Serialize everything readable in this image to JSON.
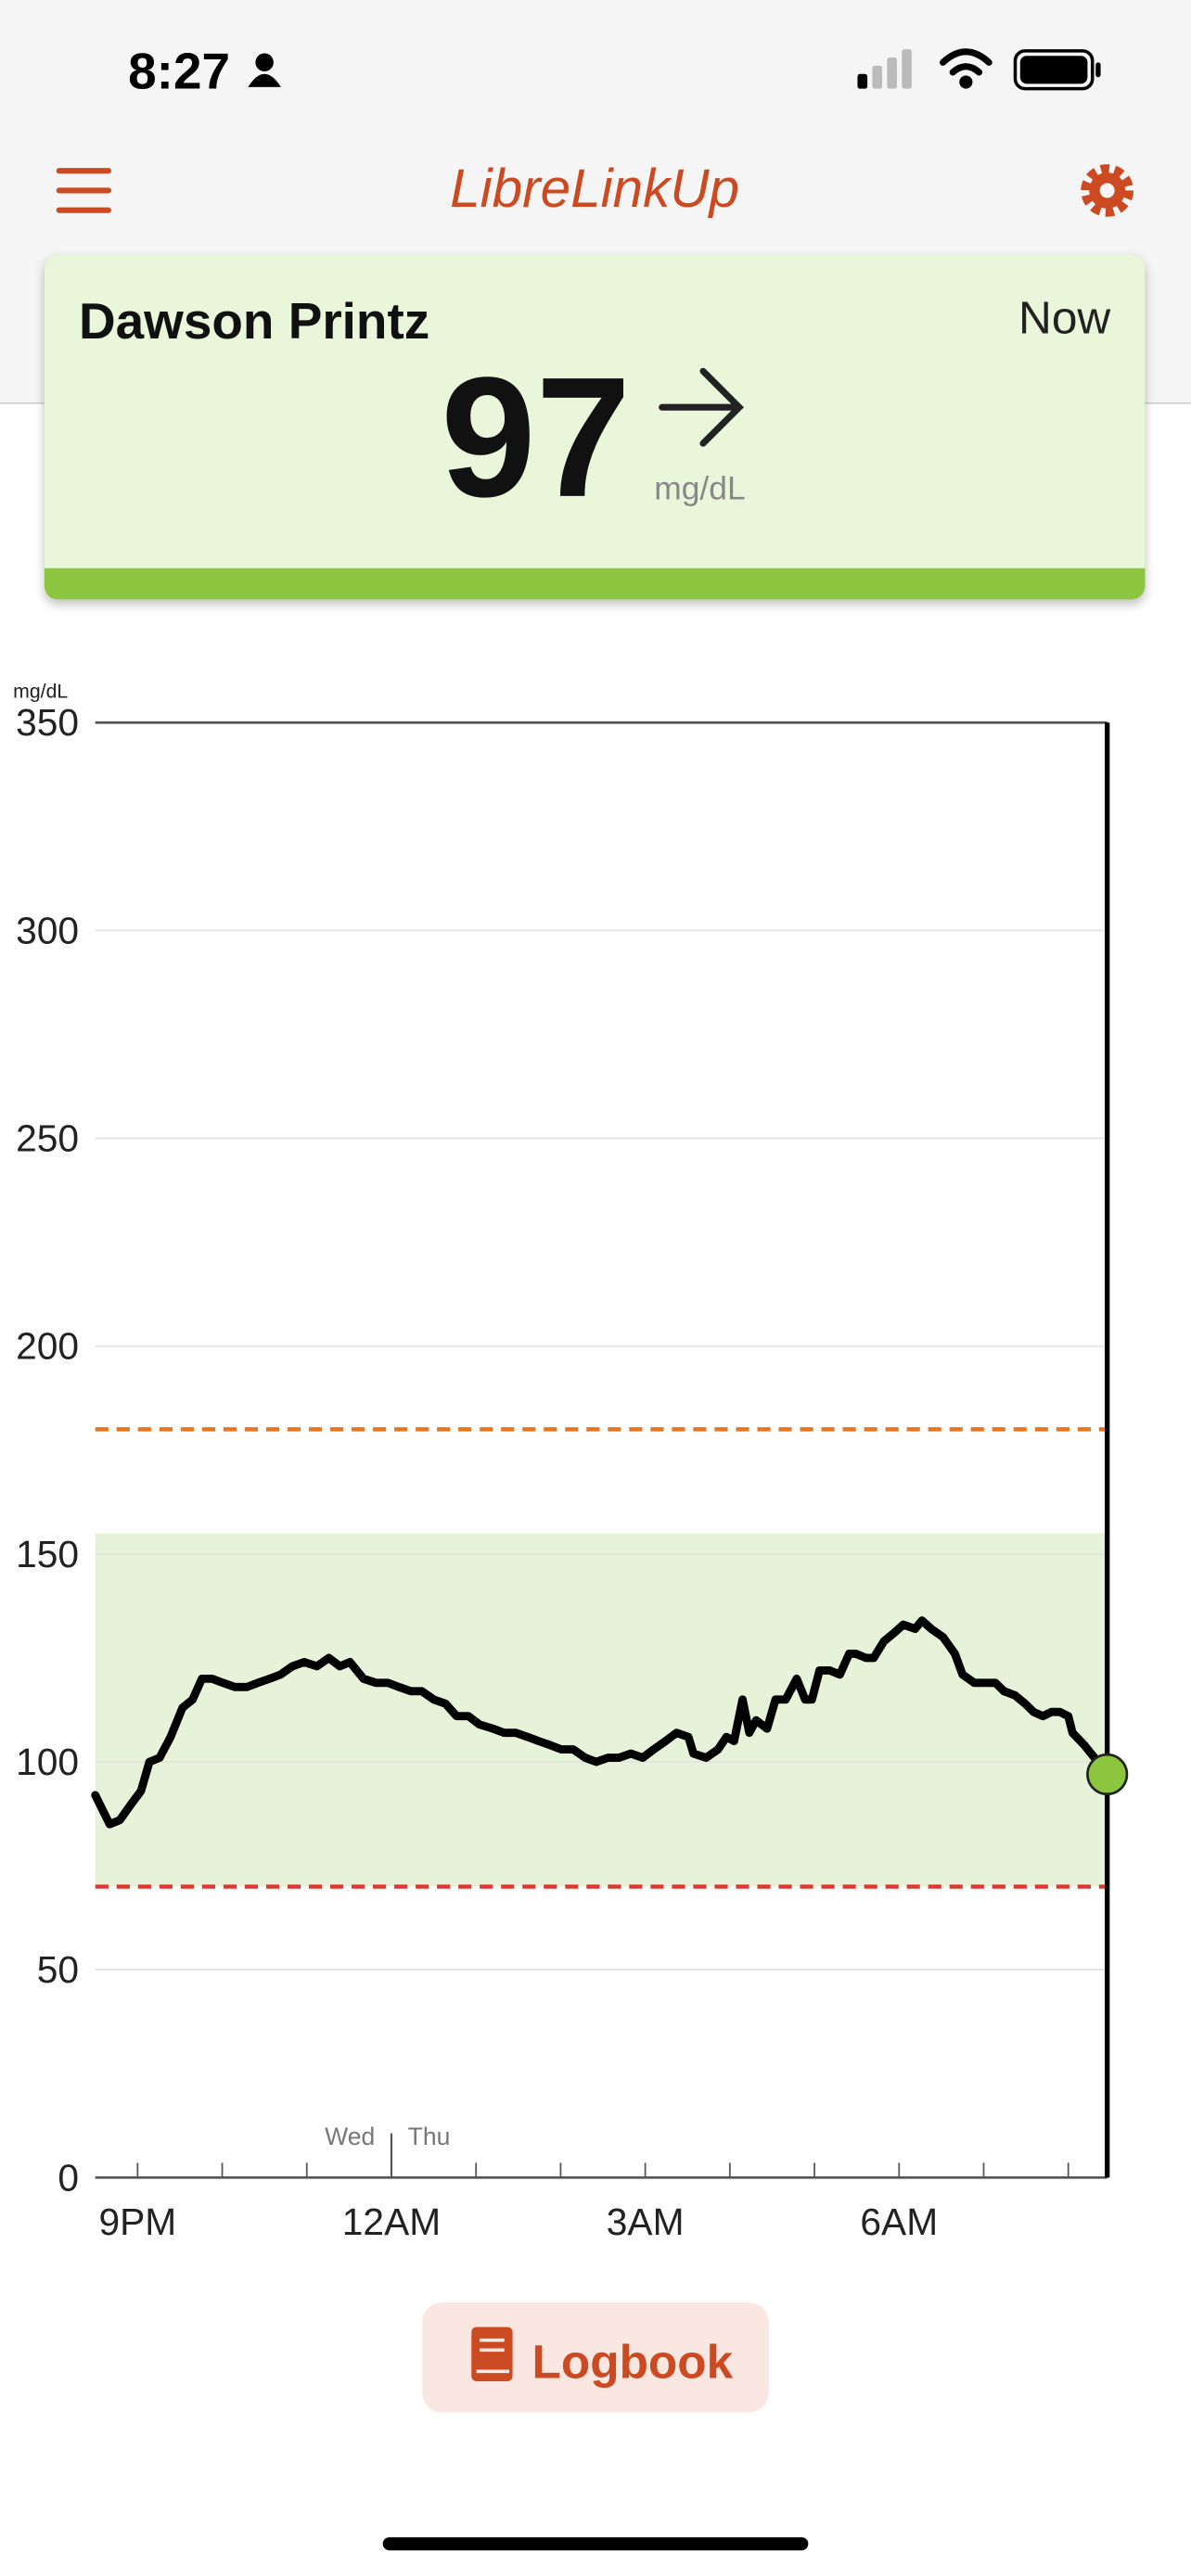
{
  "status_bar": {
    "time": "8:27"
  },
  "header": {
    "title": "LibreLinkUp"
  },
  "card": {
    "name": "Dawson Printz",
    "time": "Now",
    "value": 97,
    "unit": "mg/dL"
  },
  "chart_data": {
    "type": "line",
    "y_label": "mg/dL",
    "color": "#000000",
    "x": [
      20.5,
      20.67,
      20.79,
      20.93,
      21.04,
      21.14,
      21.26,
      21.39,
      21.53,
      21.65,
      21.76,
      21.88,
      22.01,
      22.15,
      22.29,
      22.42,
      22.56,
      22.69,
      22.83,
      22.97,
      23.12,
      23.26,
      23.39,
      23.51,
      23.67,
      23.82,
      23.96,
      24.09,
      24.23,
      24.36,
      24.5,
      24.64,
      24.77,
      24.91,
      25.04,
      25.2,
      25.33,
      25.47,
      25.61,
      25.74,
      25.88,
      26.01,
      26.15,
      26.29,
      26.42,
      26.56,
      26.69,
      26.83,
      26.97,
      27.1,
      27.24,
      27.37,
      27.51,
      27.57,
      27.72,
      27.86,
      27.96,
      28.05,
      28.15,
      28.23,
      28.31,
      28.44,
      28.54,
      28.66,
      28.79,
      28.89,
      28.97,
      29.06,
      29.18,
      29.3,
      29.41,
      29.49,
      29.61,
      29.7,
      29.82,
      29.94,
      30.05,
      30.19,
      30.27,
      30.38,
      30.52,
      30.66,
      30.75,
      30.89,
      31.02,
      31.14,
      31.24,
      31.37,
      31.49,
      31.59,
      31.7,
      31.8,
      31.9,
      32.0,
      32.05,
      32.19,
      32.35,
      32.46
    ],
    "values": [
      92,
      85,
      86,
      90,
      93,
      100,
      101,
      106,
      113,
      115,
      120,
      120,
      119,
      118,
      118,
      119,
      120,
      121,
      123,
      124,
      123,
      125,
      123,
      124,
      120,
      119,
      119,
      118,
      117,
      117,
      115,
      114,
      111,
      111,
      109,
      108,
      107,
      107,
      106,
      105,
      104,
      103,
      103,
      101,
      100,
      101,
      101,
      102,
      101,
      103,
      105,
      107,
      106,
      102,
      101,
      103,
      106,
      105,
      115,
      107,
      110,
      108,
      115,
      115,
      120,
      115,
      115,
      122,
      122,
      121,
      126,
      126,
      125,
      125,
      129,
      131,
      133,
      132,
      134,
      132,
      130,
      126,
      121,
      119,
      119,
      119,
      117,
      116,
      114,
      112,
      111,
      112,
      112,
      111,
      107,
      104,
      100,
      97
    ],
    "xlim": [
      20.5,
      32.46
    ],
    "xticks": [
      {
        "value": 21,
        "label": "9PM"
      },
      {
        "value": 24,
        "label": "12AM"
      },
      {
        "value": 27,
        "label": "3AM"
      },
      {
        "value": 30,
        "label": "6AM"
      }
    ],
    "xminorticks": [
      22,
      23,
      25,
      26,
      28,
      29,
      31,
      32
    ],
    "day_divider": {
      "value": 24,
      "labels": [
        "Wed",
        "Thu"
      ]
    },
    "ylim": [
      0,
      350
    ],
    "yticks": [
      0,
      50,
      100,
      150,
      200,
      250,
      300,
      350
    ],
    "grid": true,
    "target_range": {
      "low": 70,
      "high": 155,
      "color": "#e6f3d9"
    },
    "thresholds": [
      {
        "value": 180,
        "color": "#e8761e"
      },
      {
        "value": 70,
        "color": "#e0362c"
      }
    ],
    "marker_color": "#8cc63f"
  },
  "button": {
    "label": "Logbook"
  }
}
